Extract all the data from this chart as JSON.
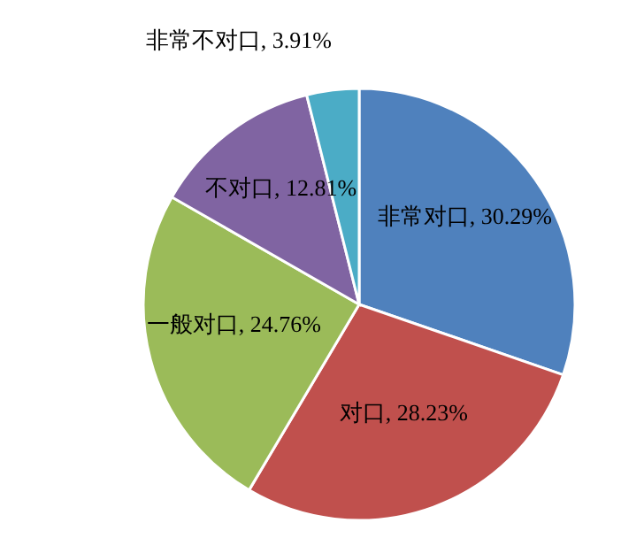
{
  "chart_data": {
    "type": "pie",
    "categories": [
      "非常对口",
      "对口",
      "一般对口",
      "不对口",
      "非常不对口"
    ],
    "values": [
      30.29,
      28.23,
      24.76,
      12.81,
      3.91
    ],
    "value_labels": [
      "30.29%",
      "28.23%",
      "24.76%",
      "12.81%",
      "3.91%"
    ],
    "colors": [
      "#4f81bd",
      "#c0504d",
      "#9bbb59",
      "#8064a2",
      "#4bacc6"
    ]
  }
}
